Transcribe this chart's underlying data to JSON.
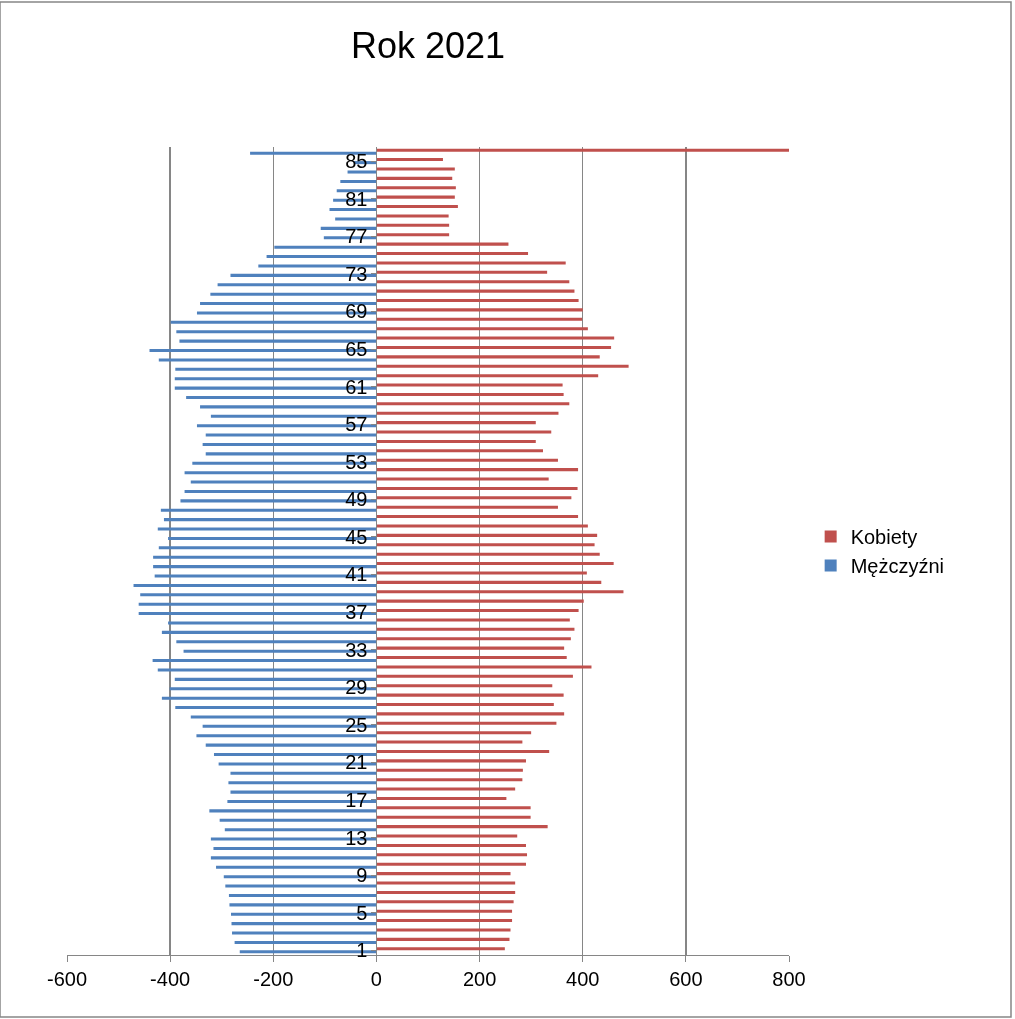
{
  "chart_data": {
    "type": "bar",
    "title": "Rok 2021",
    "orientation": "horizontal",
    "categories": [
      null,
      "85",
      null,
      null,
      null,
      "81",
      null,
      null,
      null,
      "77",
      null,
      null,
      null,
      "73",
      null,
      null,
      null,
      "69",
      null,
      null,
      null,
      "65",
      null,
      null,
      null,
      "61",
      null,
      null,
      null,
      "57",
      null,
      null,
      null,
      "53",
      null,
      null,
      null,
      "49",
      null,
      null,
      null,
      "45",
      null,
      null,
      null,
      "41",
      null,
      null,
      null,
      "37",
      null,
      null,
      null,
      "33",
      null,
      null,
      null,
      "29",
      null,
      null,
      null,
      "25",
      null,
      null,
      null,
      "21",
      null,
      null,
      null,
      "17",
      null,
      null,
      null,
      "13",
      null,
      null,
      null,
      "9",
      null,
      null,
      null,
      "5",
      null,
      null,
      null,
      "1"
    ],
    "series": [
      {
        "name": "Kobiety",
        "color": "#c0504d",
        "values": [
          800,
          129,
          152,
          147,
          154,
          152,
          158,
          140,
          141,
          141,
          256,
          294,
          367,
          331,
          374,
          384,
          392,
          400,
          399,
          410,
          461,
          455,
          433,
          489,
          430,
          361,
          363,
          374,
          353,
          309,
          339,
          309,
          323,
          352,
          391,
          334,
          390,
          378,
          352,
          391,
          410,
          428,
          423,
          433,
          460,
          408,
          436,
          479,
          402,
          392,
          375,
          384,
          377,
          364,
          369,
          417,
          381,
          341,
          363,
          344,
          364,
          349,
          300,
          283,
          335,
          290,
          284,
          283,
          269,
          252,
          299,
          299,
          332,
          273,
          290,
          292,
          290,
          260,
          269,
          269,
          266,
          263,
          263,
          260,
          258,
          249
        ]
      },
      {
        "name": "Mężczyźni",
        "color": "#4f81bd",
        "values": [
          -245,
          -44,
          -56,
          -70,
          -77,
          -84,
          -91,
          -80,
          -108,
          -102,
          -198,
          -213,
          -229,
          -283,
          -308,
          -322,
          -342,
          -348,
          -399,
          -388,
          -382,
          -440,
          -422,
          -390,
          -391,
          -391,
          -369,
          -342,
          -321,
          -348,
          -331,
          -337,
          -331,
          -357,
          -372,
          -360,
          -372,
          -380,
          -418,
          -412,
          -424,
          -404,
          -422,
          -433,
          -433,
          -430,
          -471,
          -458,
          -461,
          -461,
          -404,
          -416,
          -388,
          -374,
          -434,
          -424,
          -391,
          -401,
          -416,
          -390,
          -360,
          -337,
          -349,
          -331,
          -315,
          -306,
          -283,
          -287,
          -283,
          -289,
          -324,
          -304,
          -294,
          -321,
          -316,
          -321,
          -311,
          -296,
          -293,
          -286,
          -285,
          -282,
          -281,
          -280,
          -275,
          -265
        ]
      }
    ],
    "xlim": [
      -600,
      800
    ],
    "xticks": [
      -600,
      -400,
      -200,
      0,
      200,
      400,
      600,
      800
    ],
    "grid": "x",
    "legend": "right"
  }
}
